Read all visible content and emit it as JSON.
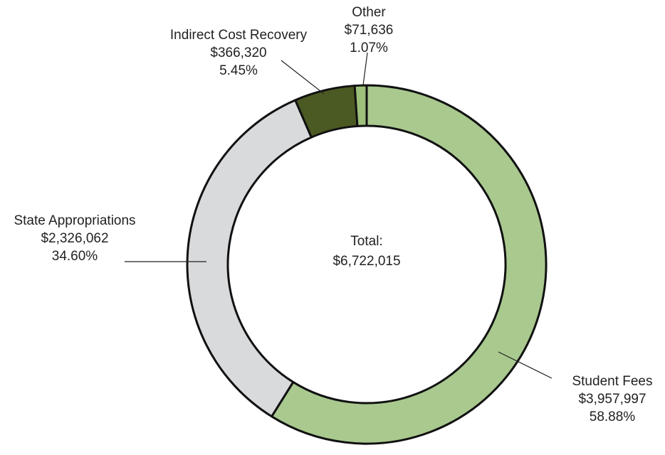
{
  "chart_data": {
    "type": "donut",
    "categories": [
      "Student Fees",
      "State Appropriations",
      "Indirect Cost Recovery",
      "Other"
    ],
    "values": [
      3957997,
      2326062,
      366320,
      71636
    ],
    "value_labels": [
      "$3,957,997",
      "$2,326,062",
      "$366,320",
      "$71,636"
    ],
    "percentages": [
      58.88,
      34.6,
      5.45,
      1.07
    ],
    "percentage_labels": [
      "58.88%",
      "34.60%",
      "5.45%",
      "1.07%"
    ],
    "colors": [
      "#a9c98f",
      "#d9dadc",
      "#4b5a22",
      "#9dc07a"
    ],
    "center_label": "Total:",
    "total": 6722015,
    "total_label": "$6,722,015"
  }
}
